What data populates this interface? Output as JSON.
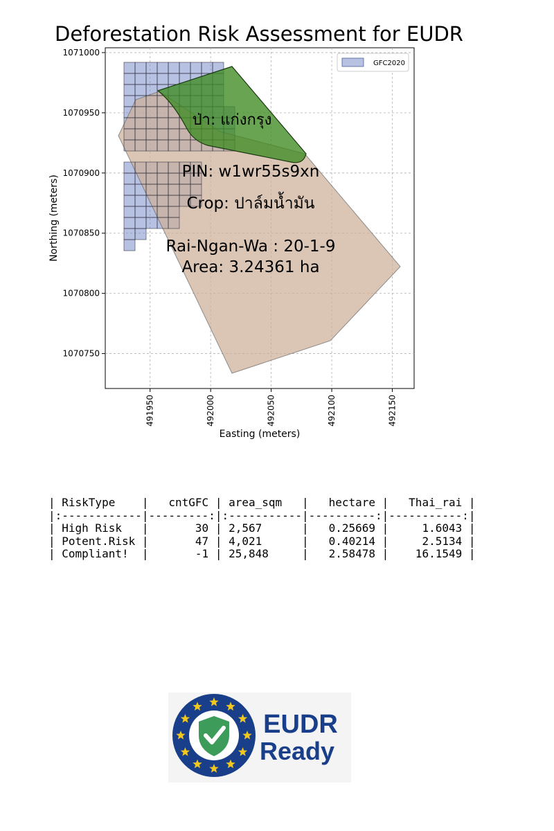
{
  "title": "Deforestation Risk Assessment for EUDR",
  "map": {
    "xlabel": "Easting (meters)",
    "ylabel": "Northing (meters)",
    "xlim": [
      491913,
      492168
    ],
    "ylim": [
      1070721,
      1071004
    ],
    "x_ticks": [
      491950,
      492000,
      492050,
      492100,
      492150
    ],
    "y_ticks": [
      1070750,
      1070800,
      1070850,
      1070900,
      1070950,
      1071000
    ],
    "grid": true,
    "legend": {
      "position": "upper-right",
      "label": "GFC2020"
    },
    "colors": {
      "plot": "#ccae97",
      "forest": "#3f8b22",
      "gfc": "#6f86c6",
      "grid_line": "#222222"
    },
    "labels": {
      "forest": "ป่า: แก่งกรุง",
      "pin": "PIN: w1wr55s9xn",
      "crop": "Crop: ปาล์มน้ำมัน",
      "rai": "Rai-Ngan-Wa : 20-1-9",
      "area": "Area: 3.24361 ha"
    }
  },
  "table": {
    "lines": [
      "| RiskType    |   cntGFC | area_sqm   |   hectare |   Thai_rai |",
      "|:------------|---------:|:-----------|----------:|-----------:|",
      "| High Risk   |       30 | 2,567      |   0.25669 |     1.6043 |",
      "| Potent.Risk |       47 | 4,021      |   0.40214 |     2.5134 |",
      "| Compliant!  |       -1 | 25,848     |   2.58478 |    16.1549 |"
    ],
    "columns": [
      "RiskType",
      "cntGFC",
      "area_sqm",
      "hectare",
      "Thai_rai"
    ],
    "rows": [
      [
        "High Risk",
        "30",
        "2,567",
        "0.25669",
        "1.6043"
      ],
      [
        "Potent.Risk",
        "47",
        "4,021",
        "0.40214",
        "2.5134"
      ],
      [
        "Compliant!",
        "-1",
        "25,848",
        "2.58478",
        "16.1549"
      ]
    ]
  },
  "badge": {
    "text_line1": "EUDR",
    "text_line2": "Ready",
    "icon": "eu-stars-shield-check-icon",
    "colors": {
      "ring": "#1a3f8a",
      "star": "#f2c81e",
      "shield": "#3e9c5a",
      "text": "#1a3f8a"
    }
  }
}
